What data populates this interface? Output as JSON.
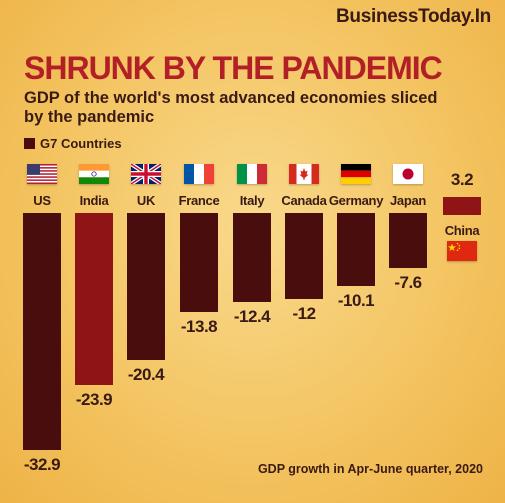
{
  "brand": "BusinessToday.In",
  "title": "SHRUNK BY THE PANDEMIC",
  "subtitle": "GDP of the world's most advanced economies sliced by the pandemic",
  "legend": "G7 Countries",
  "footnote": "GDP growth in Apr-June quarter, 2020",
  "colors": {
    "brand_red": "#b21f26",
    "bar_dark": "#4a0d0d",
    "bar_red": "#8e1416",
    "text": "#3a1a14"
  },
  "chart_data": {
    "type": "bar",
    "ylabel": "",
    "xlabel": "",
    "ylim": [
      -35,
      5
    ],
    "categories": [
      "US",
      "India",
      "UK",
      "France",
      "Italy",
      "Canada",
      "Germany",
      "Japan",
      "China"
    ],
    "values": [
      -32.9,
      -23.9,
      -20.4,
      -13.8,
      -12.4,
      -12,
      -10.1,
      -7.6,
      3.2
    ],
    "value_labels": [
      "-32.9",
      "-23.9",
      "-20.4",
      "-13.8",
      "-12.4",
      "-12",
      "-10.1",
      "-7.6",
      "3.2"
    ],
    "g7_member": [
      true,
      false,
      true,
      true,
      true,
      true,
      true,
      true,
      false
    ],
    "flag_icons": [
      "us-flag-icon",
      "india-flag-icon",
      "uk-flag-icon",
      "france-flag-icon",
      "italy-flag-icon",
      "canada-flag-icon",
      "germany-flag-icon",
      "japan-flag-icon",
      "china-flag-icon"
    ]
  }
}
